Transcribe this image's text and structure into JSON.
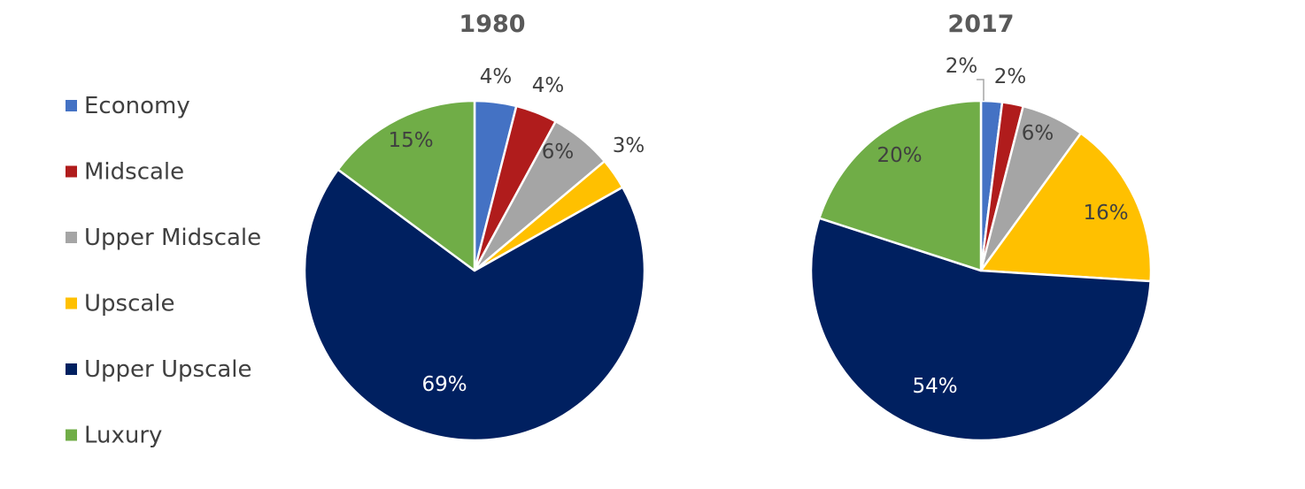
{
  "chart_data": [
    {
      "type": "pie",
      "title": "1980",
      "categories": [
        "Economy",
        "Midscale",
        "Upper Midscale",
        "Upscale",
        "Upper Upscale",
        "Luxury"
      ],
      "values": [
        4,
        4,
        6,
        3,
        69,
        15
      ],
      "labels": [
        "4%",
        "4%",
        "6%",
        "3%",
        "69%",
        "15%"
      ]
    },
    {
      "type": "pie",
      "title": "2017",
      "categories": [
        "Economy",
        "Midscale",
        "Upper Midscale",
        "Upscale",
        "Upper Upscale",
        "Luxury"
      ],
      "values": [
        2,
        2,
        6,
        16,
        54,
        20
      ],
      "labels": [
        "2%",
        "2%",
        "6%",
        "16%",
        "54%",
        "20%"
      ]
    }
  ],
  "legend": {
    "items": [
      {
        "label": "Economy",
        "color": "#4472C4"
      },
      {
        "label": "Midscale",
        "color": "#B01C1C"
      },
      {
        "label": "Upper Midscale",
        "color": "#A5A5A5"
      },
      {
        "label": "Upscale",
        "color": "#FFC000"
      },
      {
        "label": "Upper Upscale",
        "color": "#002060"
      },
      {
        "label": "Luxury",
        "color": "#70AD47"
      }
    ],
    "placement": "left"
  }
}
